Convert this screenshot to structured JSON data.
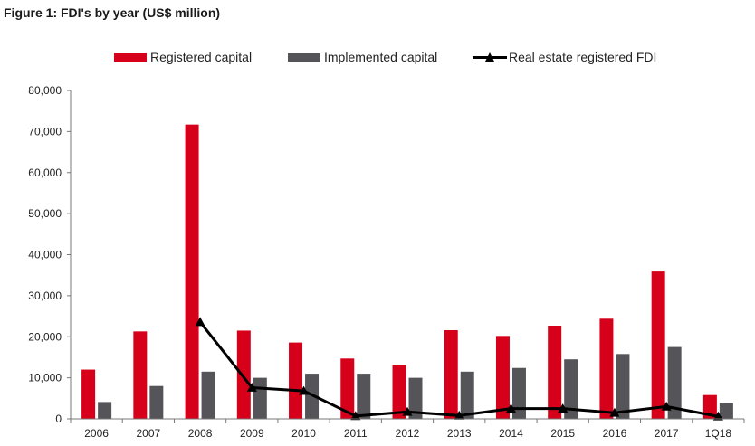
{
  "figure": {
    "title": "Figure 1: FDI's by year (US$ million)"
  },
  "colors": {
    "registered": "#d7001a",
    "implemented": "#555559",
    "line": "#000000"
  },
  "chart_data": {
    "type": "bar",
    "title": "Figure 1: FDI's by year (US$ million)",
    "xlabel": "",
    "ylabel": "",
    "ylim": [
      0,
      80000
    ],
    "yticks": [
      0,
      10000,
      20000,
      30000,
      40000,
      50000,
      60000,
      70000,
      80000
    ],
    "ytick_labels": [
      "0",
      "10,000",
      "20,000",
      "30,000",
      "40,000",
      "50,000",
      "60,000",
      "70,000",
      "80,000"
    ],
    "grid": false,
    "legend_position": "top",
    "categories": [
      "2006",
      "2007",
      "2008",
      "2009",
      "2010",
      "2011",
      "2012",
      "2013",
      "2014",
      "2015",
      "2016",
      "2017",
      "1Q18"
    ],
    "series": [
      {
        "name": "Registered capital",
        "type": "bar",
        "values": [
          12000,
          21300,
          71700,
          21500,
          18600,
          14700,
          13000,
          21600,
          20200,
          22700,
          24400,
          35900,
          5800
        ]
      },
      {
        "name": "Implemented capital",
        "type": "bar",
        "values": [
          4100,
          8000,
          11500,
          10000,
          11000,
          11000,
          10000,
          11500,
          12400,
          14500,
          15800,
          17500,
          3900
        ]
      },
      {
        "name": "Real estate registered FDI",
        "type": "line",
        "marker": "triangle",
        "values": [
          null,
          null,
          23600,
          7600,
          6800,
          700,
          1700,
          800,
          2500,
          2500,
          1500,
          3000,
          600
        ]
      }
    ]
  }
}
